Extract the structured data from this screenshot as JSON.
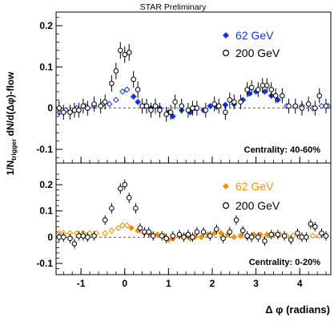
{
  "chart_data": {
    "type": "scatter",
    "header": "STAR Preliminary",
    "ylabel_main": "1/N",
    "ylabel_sub": "trigger",
    "ylabel_rest": " dN/d(Δφ)-flow",
    "xlabel": "Δ φ (radians)",
    "xlim": [
      -1.57,
      4.71
    ],
    "x_ticks": [
      -1,
      0,
      1,
      2,
      3,
      4
    ],
    "x_tick_labels": [
      "-1",
      "0",
      "1",
      "2",
      "3",
      "4"
    ],
    "panels": [
      {
        "id": "top",
        "annotation": "Centrality: 40-60%",
        "ylim": [
          -0.13,
          0.24
        ],
        "y_ticks": [
          -0.1,
          0,
          0.1,
          0.2
        ],
        "y_tick_labels": [
          "-0.1",
          "0",
          "0.1",
          "0.2"
        ],
        "series": [
          {
            "name": "62 GeV",
            "color": "#1533e6",
            "style": "mixed-diamond",
            "points": [
              [
                0.05,
                0.045
              ],
              [
                0.2,
                0.028
              ],
              [
                0.3,
                0.015
              ],
              [
                0.45,
                0.005
              ],
              [
                0.6,
                0.0
              ],
              [
                0.8,
                0.0
              ],
              [
                1.0,
                -0.01
              ],
              [
                1.1,
                -0.02
              ],
              [
                1.3,
                -0.005
              ],
              [
                1.5,
                -0.01
              ],
              [
                1.6,
                0.0
              ],
              [
                1.8,
                -0.005
              ],
              [
                1.95,
                0.005
              ],
              [
                2.1,
                0.003
              ],
              [
                2.3,
                0.008
              ],
              [
                2.5,
                0.01
              ],
              [
                2.7,
                0.02
              ],
              [
                2.85,
                0.035
              ],
              [
                3.0,
                0.04
              ],
              [
                3.2,
                0.04
              ],
              [
                3.35,
                0.03
              ],
              [
                3.5,
                0.02
              ],
              [
                3.7,
                0.005
              ],
              [
                3.9,
                0.005
              ],
              [
                4.05,
                0.005
              ],
              [
                4.3,
                0.0
              ],
              [
                4.5,
                0.005
              ],
              [
                4.65,
                0.005
              ],
              [
                -0.05,
                0.04
              ],
              [
                -0.2,
                0.02
              ],
              [
                -0.35,
                0.01
              ],
              [
                -0.5,
                0.01
              ],
              [
                -0.7,
                0.005
              ],
              [
                -0.9,
                0.005
              ],
              [
                -1.1,
                0.0
              ],
              [
                -1.35,
                -0.005
              ],
              [
                -1.5,
                -0.01
              ]
            ],
            "errors": [
              0.005,
              0.005,
              0.005,
              0.005,
              0.005,
              0.005,
              0.005,
              0.005,
              0.005,
              0.005,
              0.005,
              0.005,
              0.005,
              0.005,
              0.005,
              0.005,
              0.005,
              0.005,
              0.005,
              0.005,
              0.005,
              0.005,
              0.005,
              0.005,
              0.005,
              0.005,
              0.005,
              0.005,
              0.005,
              0.005,
              0.005,
              0.005,
              0.005,
              0.005,
              0.005,
              0.005,
              0.005
            ]
          },
          {
            "name": "200 GeV",
            "color": "#000000",
            "style": "open-circle",
            "points": [
              [
                -1.5,
                0.0
              ],
              [
                -1.4,
                -0.01
              ],
              [
                -1.25,
                -0.01
              ],
              [
                -1.15,
                -0.005
              ],
              [
                -1.05,
                -0.005
              ],
              [
                -0.95,
                0.005
              ],
              [
                -0.85,
                0.0
              ],
              [
                -0.7,
                0.01
              ],
              [
                -0.55,
                0.005
              ],
              [
                -0.45,
                0.015
              ],
              [
                -0.3,
                0.06
              ],
              [
                -0.2,
                0.09
              ],
              [
                -0.1,
                0.14
              ],
              [
                0.0,
                0.13
              ],
              [
                0.1,
                0.135
              ],
              [
                0.2,
                0.07
              ],
              [
                0.3,
                0.045
              ],
              [
                0.4,
                0.005
              ],
              [
                0.5,
                0.005
              ],
              [
                0.6,
                -0.005
              ],
              [
                0.7,
                0.005
              ],
              [
                0.8,
                -0.005
              ],
              [
                0.95,
                -0.015
              ],
              [
                1.05,
                -0.01
              ],
              [
                1.15,
                0.015
              ],
              [
                1.3,
                0.005
              ],
              [
                1.45,
                -0.005
              ],
              [
                1.55,
                0.0
              ],
              [
                1.65,
                0.0
              ],
              [
                1.85,
                -0.005
              ],
              [
                2.05,
                0.01
              ],
              [
                2.15,
                0.005
              ],
              [
                2.3,
                -0.01
              ],
              [
                2.4,
                0.02
              ],
              [
                2.5,
                0.015
              ],
              [
                2.65,
                0.015
              ],
              [
                2.8,
                0.045
              ],
              [
                2.9,
                0.05
              ],
              [
                3.05,
                0.045
              ],
              [
                3.15,
                0.055
              ],
              [
                3.25,
                0.055
              ],
              [
                3.35,
                0.045
              ],
              [
                3.45,
                0.03
              ],
              [
                3.6,
                0.03
              ],
              [
                3.75,
                0.005
              ],
              [
                3.9,
                0.005
              ],
              [
                4.05,
                0.0
              ],
              [
                4.2,
                0.01
              ],
              [
                4.35,
                0.0
              ],
              [
                4.45,
                0.03
              ],
              [
                4.6,
                0.005
              ]
            ],
            "errors": [
              0.018,
              0.018,
              0.018,
              0.018,
              0.018,
              0.018,
              0.018,
              0.018,
              0.018,
              0.018,
              0.02,
              0.02,
              0.02,
              0.02,
              0.02,
              0.02,
              0.02,
              0.018,
              0.018,
              0.018,
              0.018,
              0.018,
              0.018,
              0.018,
              0.018,
              0.018,
              0.018,
              0.018,
              0.018,
              0.018,
              0.018,
              0.018,
              0.018,
              0.018,
              0.018,
              0.018,
              0.018,
              0.018,
              0.018,
              0.018,
              0.018,
              0.018,
              0.018,
              0.018,
              0.018,
              0.018,
              0.018,
              0.018,
              0.018,
              0.018,
              0.018
            ]
          }
        ]
      },
      {
        "id": "bottom",
        "annotation": "Centrality:  0-20%",
        "ylim": [
          -0.13,
          0.24
        ],
        "y_ticks": [
          -0.1,
          0,
          0.1,
          0.2
        ],
        "y_tick_labels": [
          "-0.1",
          "0",
          "0.1",
          "0.2"
        ],
        "series": [
          {
            "name": "62 GeV",
            "color": "#f5900a",
            "style": "mixed-diamond",
            "points": [
              [
                -1.5,
                0.015
              ],
              [
                -1.4,
                0.015
              ],
              [
                -1.25,
                0.015
              ],
              [
                -1.1,
                0.015
              ],
              [
                -0.95,
                0.015
              ],
              [
                -0.8,
                0.015
              ],
              [
                -0.65,
                0.015
              ],
              [
                -0.45,
                0.015
              ],
              [
                -0.3,
                0.025
              ],
              [
                -0.15,
                0.035
              ],
              [
                -0.05,
                0.045
              ],
              [
                0.05,
                0.045
              ],
              [
                0.15,
                0.035
              ],
              [
                0.3,
                0.025
              ],
              [
                0.45,
                0.015
              ],
              [
                0.6,
                0.01
              ],
              [
                0.75,
                0.01
              ],
              [
                0.9,
                0.005
              ],
              [
                1.0,
                -0.01
              ],
              [
                1.1,
                -0.005
              ],
              [
                1.25,
                0.005
              ],
              [
                1.4,
                0.005
              ],
              [
                1.5,
                -0.005
              ],
              [
                1.6,
                0.0
              ],
              [
                1.75,
                0.0
              ],
              [
                1.9,
                0.01
              ],
              [
                2.05,
                0.015
              ],
              [
                2.2,
                0.015
              ],
              [
                2.35,
                0.01
              ],
              [
                2.5,
                0.0
              ],
              [
                2.65,
                0.005
              ],
              [
                2.8,
                0.0
              ],
              [
                2.95,
                0.01
              ],
              [
                3.1,
                0.01
              ],
              [
                3.25,
                0.01
              ],
              [
                3.4,
                0.01
              ],
              [
                3.55,
                0.01
              ],
              [
                3.7,
                0.005
              ],
              [
                3.85,
                0.005
              ],
              [
                4.0,
                0.0
              ],
              [
                4.15,
                0.0
              ],
              [
                4.3,
                0.005
              ],
              [
                4.45,
                0.005
              ],
              [
                4.6,
                0.005
              ]
            ],
            "errors": [
              0.005,
              0.005,
              0.005,
              0.005,
              0.005,
              0.005,
              0.005,
              0.005,
              0.005,
              0.005,
              0.005,
              0.005,
              0.005,
              0.005,
              0.005,
              0.005,
              0.005,
              0.005,
              0.005,
              0.005,
              0.005,
              0.005,
              0.005,
              0.005,
              0.005,
              0.005,
              0.005,
              0.005,
              0.005,
              0.005,
              0.005,
              0.005,
              0.005,
              0.005,
              0.005,
              0.005,
              0.005,
              0.005,
              0.005,
              0.005,
              0.005,
              0.005,
              0.005,
              0.005
            ]
          },
          {
            "name": "200 GeV",
            "color": "#000000",
            "style": "open-circle",
            "points": [
              [
                -1.5,
                0.0
              ],
              [
                -1.4,
                0.0
              ],
              [
                -1.25,
                -0.005
              ],
              [
                -1.15,
                -0.025
              ],
              [
                -1.05,
                0.005
              ],
              [
                -0.95,
                0.005
              ],
              [
                -0.85,
                0.0
              ],
              [
                -0.7,
                0.005
              ],
              [
                -0.45,
                0.065
              ],
              [
                -0.3,
                0.11
              ],
              [
                -0.1,
                0.185
              ],
              [
                0.0,
                0.2
              ],
              [
                0.1,
                0.15
              ],
              [
                0.25,
                0.11
              ],
              [
                0.35,
                0.035
              ],
              [
                0.45,
                0.02
              ],
              [
                0.55,
                0.02
              ],
              [
                0.65,
                0.005
              ],
              [
                0.85,
                0.005
              ],
              [
                0.95,
                -0.005
              ],
              [
                1.1,
                0.005
              ],
              [
                1.25,
                0.01
              ],
              [
                1.35,
                0.0
              ],
              [
                1.45,
                0.01
              ],
              [
                1.55,
                0.0
              ],
              [
                1.65,
                0.02
              ],
              [
                1.8,
                0.02
              ],
              [
                1.95,
                0.005
              ],
              [
                2.1,
                0.03
              ],
              [
                2.25,
                -0.005
              ],
              [
                2.4,
                0.02
              ],
              [
                2.55,
                0.065
              ],
              [
                2.7,
                0.025
              ],
              [
                2.8,
                0.005
              ],
              [
                2.9,
                0.0
              ],
              [
                3.05,
                0.0
              ],
              [
                3.2,
                -0.015
              ],
              [
                3.35,
                0.01
              ],
              [
                3.5,
                0.01
              ],
              [
                3.65,
                0.005
              ],
              [
                3.8,
                -0.01
              ],
              [
                3.95,
                0.015
              ],
              [
                4.05,
                0.0
              ],
              [
                4.15,
                0.0
              ],
              [
                4.25,
                0.05
              ],
              [
                4.35,
                0.04
              ],
              [
                4.5,
                0.015
              ],
              [
                4.6,
                0.005
              ]
            ],
            "errors": [
              0.018,
              0.018,
              0.018,
              0.018,
              0.018,
              0.018,
              0.018,
              0.018,
              0.018,
              0.02,
              0.02,
              0.02,
              0.02,
              0.02,
              0.018,
              0.018,
              0.018,
              0.018,
              0.018,
              0.018,
              0.018,
              0.018,
              0.018,
              0.018,
              0.018,
              0.018,
              0.018,
              0.018,
              0.018,
              0.018,
              0.018,
              0.018,
              0.018,
              0.018,
              0.018,
              0.018,
              0.018,
              0.018,
              0.018,
              0.018,
              0.018,
              0.018,
              0.018,
              0.018,
              0.018,
              0.018,
              0.018,
              0.018
            ]
          }
        ]
      }
    ]
  }
}
